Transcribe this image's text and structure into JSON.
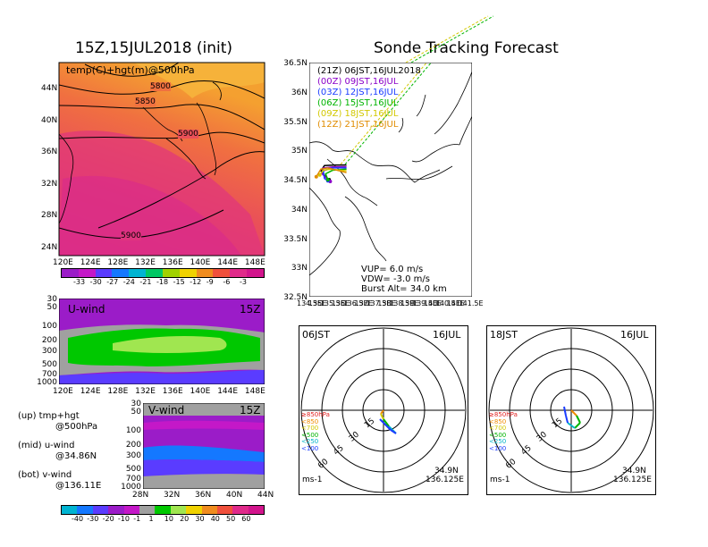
{
  "left_title": "15Z,15JUL2018 (init)",
  "right_title": "Sonde Tracking Forecast",
  "top_map": {
    "label": "temp(C)+hgt(m)@500hPa",
    "contour_labels": [
      "5800",
      "5850",
      "5900",
      "5900"
    ],
    "lat_ticks": [
      "44N",
      "40N",
      "36N",
      "32N",
      "28N",
      "24N"
    ],
    "lon_ticks": [
      "120E",
      "124E",
      "128E",
      "132E",
      "136E",
      "140E",
      "144E",
      "148E"
    ],
    "colorbar_ticks": [
      "-33",
      "-30",
      "-27",
      "-24",
      "-21",
      "-18",
      "-15",
      "-12",
      "-9",
      "-6",
      "-3"
    ]
  },
  "u_panel": {
    "label": "U-wind",
    "time": "15Z",
    "p_ticks": [
      "30",
      "50",
      "100",
      "200",
      "300",
      "500",
      "700",
      "1000"
    ],
    "lon_ticks": [
      "120E",
      "124E",
      "128E",
      "132E",
      "136E",
      "140E",
      "144E",
      "148E"
    ]
  },
  "v_panel": {
    "label": "V-wind",
    "time": "15Z",
    "p_ticks": [
      "30",
      "50",
      "100",
      "200",
      "300",
      "500",
      "700",
      "1000"
    ],
    "lat_ticks": [
      "28N",
      "32N",
      "36N",
      "40N",
      "44N"
    ]
  },
  "notes": [
    {
      "a": "(up) tmp+hgt",
      "b": "@500hPa"
    },
    {
      "a": "(mid) u-wind",
      "b": "@34.86N"
    },
    {
      "a": "(bot) v-wind",
      "b": "@136.11E"
    }
  ],
  "wind_colorbar_ticks": [
    "-40",
    "-30",
    "-20",
    "-10",
    "-1",
    "1",
    "10",
    "20",
    "30",
    "40",
    "50",
    "60"
  ],
  "track_map": {
    "lat_ticks": [
      "36.5N",
      "36N",
      "35.5N",
      "35N",
      "34.5N",
      "34N",
      "33.5N",
      "33N",
      "32.5N"
    ],
    "lon_ticks": [
      "134.5E",
      "135E",
      "135.5E",
      "136E",
      "136.5E",
      "137E",
      "137.5E",
      "138E",
      "138.5E",
      "139E",
      "139.5E",
      "140E",
      "140.5E",
      "141E",
      "141.5E"
    ],
    "legend": [
      {
        "run": "(21Z)",
        "launch": "06JST,16JUL2018",
        "color": "#000000"
      },
      {
        "run": "(00Z)",
        "launch": "09JST,16JUL",
        "color": "#8a00c8"
      },
      {
        "run": "(03Z)",
        "launch": "12JST,16JUL",
        "color": "#1a3cff"
      },
      {
        "run": "(06Z)",
        "launch": "15JST,16JUL",
        "color": "#00b400"
      },
      {
        "run": "(09Z)",
        "launch": "18JST,16JUL",
        "color": "#d2c800"
      },
      {
        "run": "(12Z)",
        "launch": "21JST,16JUL",
        "color": "#e08c00"
      }
    ],
    "vup": "VUP=  6.0 m/s",
    "vdw": "VDW= -3.0 m/s",
    "burst": "Burst Alt= 34.0 km"
  },
  "hodographs": [
    {
      "time": "06JST",
      "date": "16JUL",
      "lat": "34.9N",
      "lon": "136.125E",
      "unit": "ms-1",
      "ring_labels": [
        "15",
        "30",
        "45",
        "60"
      ]
    },
    {
      "time": "18JST",
      "date": "16JUL",
      "lat": "34.9N",
      "lon": "136.125E",
      "unit": "ms-1",
      "ring_labels": [
        "15",
        "30",
        "45",
        "60"
      ]
    }
  ],
  "hodo_legend": [
    {
      "label": "≥850hPa",
      "color": "#e02020"
    },
    {
      "label": "<850",
      "color": "#f08c00"
    },
    {
      "label": "<700",
      "color": "#d2c800"
    },
    {
      "label": "<500",
      "color": "#00b400"
    },
    {
      "label": "<250",
      "color": "#00b4c8"
    },
    {
      "label": "<100",
      "color": "#1a3cff"
    }
  ],
  "chart_data": [
    {
      "type": "heatmap",
      "title": "15Z,15JUL2018 (init)",
      "subtitle": "temp(C)+hgt(m)@500hPa",
      "x": {
        "ticks": [
          "120E",
          "124E",
          "128E",
          "132E",
          "136E",
          "140E",
          "144E",
          "148E"
        ]
      },
      "y": {
        "ticks": [
          "24N",
          "28N",
          "32N",
          "36N",
          "40N",
          "44N"
        ]
      },
      "color_scale": [
        -33,
        -30,
        -27,
        -24,
        -21,
        -18,
        -15,
        -12,
        -9,
        -6,
        -3
      ],
      "contours": [
        5800,
        5850,
        5900,
        5900
      ]
    },
    {
      "type": "heatmap",
      "title": "U-wind",
      "x_ticks": [
        "120E",
        "124E",
        "128E",
        "132E",
        "136E",
        "140E",
        "144E",
        "148E"
      ],
      "y_ticks": [
        30,
        50,
        100,
        200,
        300,
        500,
        700,
        1000
      ]
    },
    {
      "type": "heatmap",
      "title": "V-wind",
      "x_ticks": [
        "28N",
        "32N",
        "36N",
        "40N",
        "44N"
      ],
      "y_ticks": [
        30,
        50,
        100,
        200,
        300,
        500,
        700,
        1000
      ]
    },
    {
      "type": "line",
      "title": "Sonde Tracking Forecast",
      "xlim": [
        134.5,
        141.5
      ],
      "ylim": [
        32.5,
        36.5
      ],
      "series": [
        {
          "name": "(21Z) 06JST,16JUL2018",
          "x": [
            136.1,
            135.6,
            135.15,
            135.0,
            135.2,
            135.35
          ],
          "y": [
            34.75,
            34.75,
            34.74,
            34.65,
            34.55,
            34.5
          ]
        },
        {
          "name": "(00Z) 09JST,16JUL",
          "x": [
            136.1,
            135.55,
            135.1,
            135.05,
            135.25,
            135.4
          ],
          "y": [
            34.72,
            34.72,
            34.7,
            34.6,
            34.52,
            34.47
          ]
        },
        {
          "name": "(03Z) 12JST,16JUL",
          "x": [
            136.1,
            135.5,
            135.1,
            135.15,
            135.3
          ],
          "y": [
            34.7,
            34.7,
            34.65,
            34.52,
            34.48
          ]
        },
        {
          "name": "(06Z) 15JST,16JUL",
          "x": [
            136.1,
            135.5,
            135.2,
            135.3
          ],
          "y": [
            34.68,
            34.66,
            34.6,
            34.5
          ]
        },
        {
          "name": "(09Z) 18JST,16JUL",
          "x": [
            136.1,
            135.4,
            135.1,
            134.95
          ],
          "y": [
            34.65,
            34.68,
            34.66,
            34.58
          ]
        },
        {
          "name": "(12Z) 21JST,16JUL",
          "x": [
            136.1,
            135.3,
            135.0,
            134.8
          ],
          "y": [
            34.62,
            34.7,
            34.68,
            34.55
          ]
        }
      ]
    },
    {
      "type": "scatter",
      "title": "06JST 16JUL",
      "unit": "ms-1",
      "rings": [
        15,
        30,
        45,
        60
      ]
    },
    {
      "type": "scatter",
      "title": "18JST 16JUL",
      "unit": "ms-1",
      "rings": [
        15,
        30,
        45,
        60
      ]
    }
  ]
}
